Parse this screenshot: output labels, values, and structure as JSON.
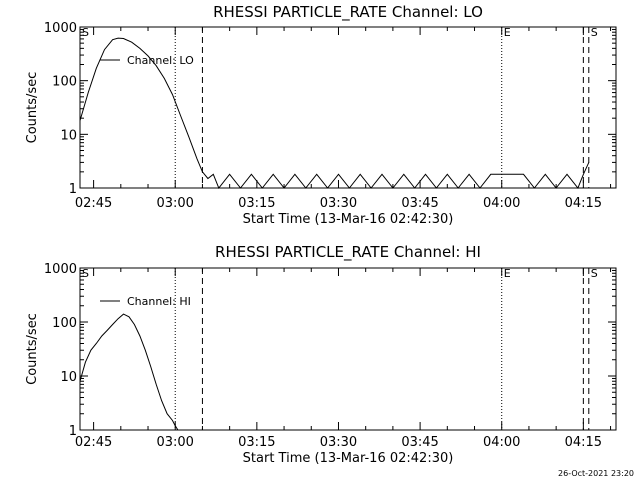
{
  "chart_data": [
    {
      "type": "line",
      "title": "RHESSI PARTICLE_RATE Channel: LO",
      "xlabel": "Start Time (13-Mar-16 02:42:30)",
      "ylabel": "Counts/sec",
      "yscale": "log",
      "ylim": [
        1,
        1000
      ],
      "xlim": [
        "02:42:30",
        "04:21:00"
      ],
      "xticks": [
        "02:45",
        "03:00",
        "03:15",
        "03:30",
        "03:45",
        "04:00",
        "04:15"
      ],
      "yticks": [
        "1",
        "10",
        "100",
        "1000"
      ],
      "legend": "top-left",
      "grid": false,
      "series": [
        {
          "name": "Channel: LO",
          "x": [
            "02:42:30",
            "02:44:00",
            "02:45:30",
            "02:47:00",
            "02:48:30",
            "02:49:30",
            "02:50:30",
            "02:52:00",
            "02:53:30",
            "02:55:00",
            "02:56:30",
            "02:58:00",
            "02:59:30",
            "03:01:00",
            "03:02:30",
            "03:04:00",
            "03:05:00",
            "03:06:00",
            "03:07:00",
            "03:08:00",
            "03:10:00",
            "03:12:00",
            "03:14:00",
            "03:16:00",
            "03:18:00",
            "03:20:00",
            "03:22:00",
            "03:24:00",
            "03:26:00",
            "03:28:00",
            "03:30:00",
            "03:32:00",
            "03:34:00",
            "03:36:00",
            "03:38:00",
            "03:40:00",
            "03:42:00",
            "03:44:00",
            "03:46:00",
            "03:48:00",
            "03:50:00",
            "03:52:00",
            "03:54:00",
            "03:56:00",
            "03:58:00",
            "04:00:00",
            "04:02:00",
            "04:04:00",
            "04:06:00",
            "04:08:00",
            "04:10:00",
            "04:12:00",
            "04:14:00",
            "04:15:00",
            "04:16:00"
          ],
          "y": [
            18,
            60,
            170,
            380,
            580,
            620,
            610,
            520,
            400,
            290,
            190,
            110,
            55,
            22,
            9,
            3.5,
            2,
            1.5,
            1.8,
            1,
            1.8,
            1,
            1.8,
            1,
            1.8,
            1,
            1.8,
            1,
            1.8,
            1,
            1.8,
            1,
            1.8,
            1,
            1.8,
            1,
            1.8,
            1,
            1.8,
            1,
            1.8,
            1,
            1.8,
            1,
            1.8,
            1.8,
            1.8,
            1.8,
            1,
            1.8,
            1,
            1.8,
            1,
            1.8,
            3
          ]
        }
      ],
      "vlines": [
        {
          "x": "03:00:00",
          "style": "dotted"
        },
        {
          "x": "03:05:00",
          "style": "dashed"
        },
        {
          "x": "04:00:00",
          "style": "dotted"
        },
        {
          "x": "04:15:00",
          "style": "dashed"
        },
        {
          "x": "04:16:00",
          "style": "dashed"
        }
      ],
      "markers": [
        {
          "x": "02:42:30",
          "text": "S"
        },
        {
          "x": "04:00:00",
          "text": "E"
        },
        {
          "x": "04:16:00",
          "text": "S"
        }
      ]
    },
    {
      "type": "line",
      "title": "RHESSI PARTICLE_RATE Channel: HI",
      "xlabel": "Start Time (13-Mar-16 02:42:30)",
      "ylabel": "Counts/sec",
      "yscale": "log",
      "ylim": [
        1,
        1000
      ],
      "xlim": [
        "02:42:30",
        "04:21:00"
      ],
      "xticks": [
        "02:45",
        "03:00",
        "03:15",
        "03:30",
        "03:45",
        "04:00",
        "04:15"
      ],
      "yticks": [
        "1",
        "10",
        "100",
        "1000"
      ],
      "legend": "top-left",
      "grid": false,
      "series": [
        {
          "name": "Channel: HI",
          "x": [
            "02:42:30",
            "02:43:30",
            "02:44:30",
            "02:45:30",
            "02:46:30",
            "02:47:30",
            "02:48:30",
            "02:49:30",
            "02:50:30",
            "02:51:30",
            "02:52:30",
            "02:53:30",
            "02:54:30",
            "02:55:30",
            "02:56:30",
            "02:57:30",
            "02:58:30",
            "02:59:30",
            "03:00:00",
            "03:00:30"
          ],
          "y": [
            8,
            18,
            30,
            40,
            55,
            70,
            90,
            115,
            140,
            125,
            90,
            55,
            30,
            15,
            7,
            3.5,
            2,
            1.5,
            1.2,
            1
          ]
        }
      ],
      "vlines": [
        {
          "x": "03:00:00",
          "style": "dotted"
        },
        {
          "x": "03:05:00",
          "style": "dashed"
        },
        {
          "x": "04:00:00",
          "style": "dotted"
        },
        {
          "x": "04:15:00",
          "style": "dashed"
        },
        {
          "x": "04:16:00",
          "style": "dashed"
        }
      ],
      "markers": [
        {
          "x": "02:42:30",
          "text": "S"
        },
        {
          "x": "04:00:00",
          "text": "E"
        },
        {
          "x": "04:16:00",
          "text": "S"
        }
      ]
    }
  ],
  "footer": {
    "timestamp": "26-Oct-2021 23:20"
  }
}
